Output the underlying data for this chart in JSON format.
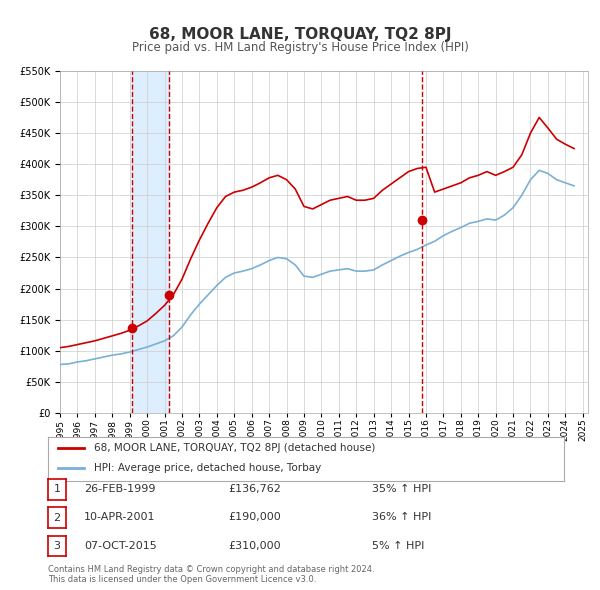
{
  "title": "68, MOOR LANE, TORQUAY, TQ2 8PJ",
  "subtitle": "Price paid vs. HM Land Registry's House Price Index (HPI)",
  "legend_line1": "68, MOOR LANE, TORQUAY, TQ2 8PJ (detached house)",
  "legend_line2": "HPI: Average price, detached house, Torbay",
  "transactions": [
    {
      "num": 1,
      "date": "26-FEB-1999",
      "price": "£136,762",
      "pct": "35% ↑ HPI",
      "year": 1999.15,
      "value": 136762
    },
    {
      "num": 2,
      "date": "10-APR-2001",
      "price": "£190,000",
      "pct": "36% ↑ HPI",
      "year": 2001.28,
      "value": 190000
    },
    {
      "num": 3,
      "date": "07-OCT-2015",
      "price": "£310,000",
      "pct": "5% ↑ HPI",
      "year": 2015.77,
      "value": 310000
    }
  ],
  "vline1_x": 1999.15,
  "vline2_x": 2001.28,
  "vline3_x": 2015.77,
  "shade_x1": 1999.15,
  "shade_x2": 2001.28,
  "ylim": [
    0,
    550000
  ],
  "xlim_start": 1995.0,
  "xlim_end": 2025.3,
  "red_line_color": "#cc0000",
  "blue_line_color": "#7ab0d4",
  "vline_color": "#cc0000",
  "shade_color": "#ddeeff",
  "grid_color": "#cccccc",
  "background_color": "#ffffff",
  "footer": "Contains HM Land Registry data © Crown copyright and database right 2024.\nThis data is licensed under the Open Government Licence v3.0.",
  "hpi_data": {
    "years": [
      1995.0,
      1995.5,
      1996.0,
      1996.5,
      1997.0,
      1997.5,
      1998.0,
      1998.5,
      1999.0,
      1999.5,
      2000.0,
      2000.5,
      2001.0,
      2001.5,
      2002.0,
      2002.5,
      2003.0,
      2003.5,
      2004.0,
      2004.5,
      2005.0,
      2005.5,
      2006.0,
      2006.5,
      2007.0,
      2007.5,
      2008.0,
      2008.5,
      2009.0,
      2009.5,
      2010.0,
      2010.5,
      2011.0,
      2011.5,
      2012.0,
      2012.5,
      2013.0,
      2013.5,
      2014.0,
      2014.5,
      2015.0,
      2015.5,
      2016.0,
      2016.5,
      2017.0,
      2017.5,
      2018.0,
      2018.5,
      2019.0,
      2019.5,
      2020.0,
      2020.5,
      2021.0,
      2021.5,
      2022.0,
      2022.5,
      2023.0,
      2023.5,
      2024.0,
      2024.5
    ],
    "values": [
      78000,
      79000,
      82000,
      84000,
      87000,
      90000,
      93000,
      95000,
      98000,
      102000,
      106000,
      111000,
      116000,
      124000,
      138000,
      158000,
      175000,
      190000,
      205000,
      218000,
      225000,
      228000,
      232000,
      238000,
      245000,
      250000,
      248000,
      238000,
      220000,
      218000,
      223000,
      228000,
      230000,
      232000,
      228000,
      228000,
      230000,
      238000,
      245000,
      252000,
      258000,
      263000,
      270000,
      276000,
      285000,
      292000,
      298000,
      305000,
      308000,
      312000,
      310000,
      318000,
      330000,
      350000,
      375000,
      390000,
      385000,
      375000,
      370000,
      365000
    ]
  },
  "hpi_red_data": {
    "years": [
      1995.0,
      1995.5,
      1996.0,
      1996.5,
      1997.0,
      1997.5,
      1998.0,
      1998.5,
      1999.0,
      1999.5,
      2000.0,
      2000.5,
      2001.0,
      2001.5,
      2002.0,
      2002.5,
      2003.0,
      2003.5,
      2004.0,
      2004.5,
      2005.0,
      2005.5,
      2006.0,
      2006.5,
      2007.0,
      2007.5,
      2008.0,
      2008.5,
      2009.0,
      2009.5,
      2010.0,
      2010.5,
      2011.0,
      2011.5,
      2012.0,
      2012.5,
      2013.0,
      2013.5,
      2014.0,
      2014.5,
      2015.0,
      2015.5,
      2016.0,
      2016.5,
      2017.0,
      2017.5,
      2018.0,
      2018.5,
      2019.0,
      2019.5,
      2020.0,
      2020.5,
      2021.0,
      2021.5,
      2022.0,
      2022.5,
      2023.0,
      2023.5,
      2024.0,
      2024.5
    ],
    "values": [
      105000,
      107000,
      110000,
      113000,
      116000,
      120000,
      124000,
      128000,
      133000,
      140000,
      148000,
      160000,
      173000,
      190000,
      215000,
      248000,
      278000,
      305000,
      330000,
      348000,
      355000,
      358000,
      363000,
      370000,
      378000,
      382000,
      375000,
      360000,
      332000,
      328000,
      335000,
      342000,
      345000,
      348000,
      342000,
      342000,
      345000,
      358000,
      368000,
      378000,
      388000,
      393000,
      395000,
      355000,
      360000,
      365000,
      370000,
      378000,
      382000,
      388000,
      382000,
      388000,
      395000,
      415000,
      450000,
      475000,
      458000,
      440000,
      432000,
      425000
    ]
  }
}
